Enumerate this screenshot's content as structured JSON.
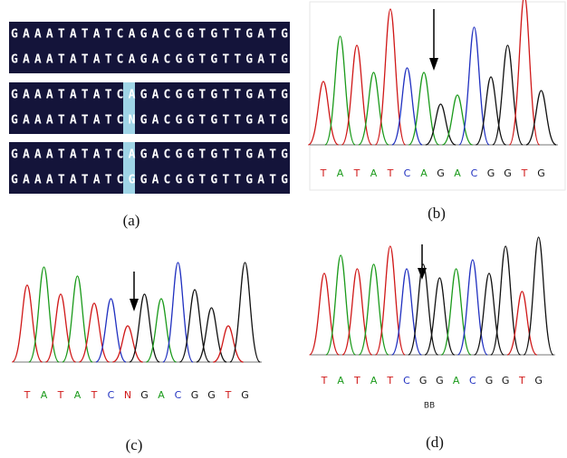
{
  "panels": [
    {
      "label": "(a)",
      "sequences": [
        "GAAATATATCAGACGGTGTTGATG",
        "GAAATATATCAGACGGTGTTGATG",
        "GAAATATATCAGACGGTGTTGATG",
        "GAAATATATCNGACGGTGTTGATG",
        "GAAATATATCAGACGGTGTTGATG",
        "GAAATATATCGGACGGTGTTGATG"
      ]
    },
    {
      "label": "(b)",
      "bases": [
        "T",
        "A",
        "T",
        "A",
        "T",
        "C",
        "A",
        "G",
        "A",
        "C",
        "G",
        "G",
        "T",
        "G"
      ]
    },
    {
      "label": "(c)",
      "bases": [
        "T",
        "A",
        "T",
        "A",
        "T",
        "C",
        "N",
        "G",
        "A",
        "C",
        "G",
        "G",
        "T",
        "G"
      ]
    },
    {
      "label": "(d)",
      "bases": [
        "T",
        "A",
        "T",
        "A",
        "T",
        "C",
        "G",
        "G",
        "A",
        "C",
        "G",
        "G",
        "T",
        "G"
      ],
      "note": "BB"
    }
  ]
}
